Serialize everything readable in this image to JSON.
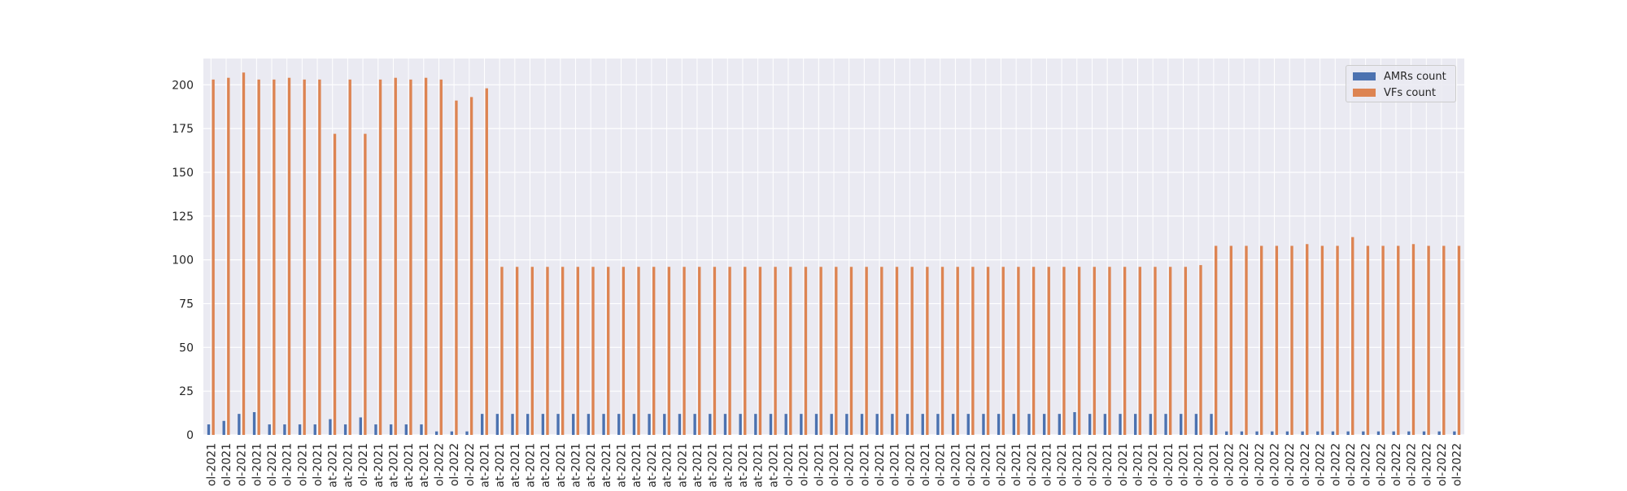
{
  "chart_data": {
    "type": "bar",
    "title": "",
    "xlabel": "",
    "ylabel": "",
    "ylim": [
      0,
      215
    ],
    "yticks": [
      0,
      25,
      50,
      75,
      100,
      125,
      150,
      175,
      200
    ],
    "grid": true,
    "legend_position": "top-right",
    "categories": [
      "ol-2021",
      "ol-2021",
      "ol-2021",
      "ol-2021",
      "ol-2021",
      "ol-2021",
      "ol-2021",
      "ol-2021",
      "at-2021",
      "at-2021",
      "ol-2021",
      "at-2021",
      "at-2021",
      "at-2021",
      "at-2021",
      "ol-2022",
      "ol-2022",
      "ol-2022",
      "at-2021",
      "at-2021",
      "at-2021",
      "at-2021",
      "at-2021",
      "at-2021",
      "at-2021",
      "at-2021",
      "at-2021",
      "at-2021",
      "at-2021",
      "at-2021",
      "at-2021",
      "at-2021",
      "at-2021",
      "at-2021",
      "at-2021",
      "at-2021",
      "at-2021",
      "at-2021",
      "ol-2021",
      "ol-2021",
      "ol-2021",
      "ol-2021",
      "ol-2021",
      "ol-2021",
      "ol-2021",
      "ol-2021",
      "ol-2021",
      "ol-2021",
      "ol-2021",
      "ol-2021",
      "ol-2021",
      "ol-2021",
      "ol-2021",
      "ol-2021",
      "ol-2021",
      "ol-2021",
      "ol-2021",
      "ol-2021",
      "ol-2021",
      "ol-2021",
      "ol-2021",
      "ol-2021",
      "ol-2021",
      "ol-2021",
      "ol-2021",
      "ol-2021",
      "ol-2021",
      "ol-2022",
      "ol-2022",
      "ol-2022",
      "ol-2022",
      "ol-2022",
      "ol-2022",
      "ol-2022",
      "ol-2022",
      "ol-2022",
      "ol-2022",
      "ol-2022",
      "ol-2022",
      "ol-2022",
      "ol-2022",
      "ol-2022",
      "ol-2022"
    ],
    "series": [
      {
        "name": "AMRs count",
        "color": "#4c72b0",
        "values": [
          6,
          8,
          12,
          13,
          6,
          6,
          6,
          6,
          9,
          6,
          10,
          6,
          6,
          6,
          6,
          2,
          2,
          2,
          12,
          12,
          12,
          12,
          12,
          12,
          12,
          12,
          12,
          12,
          12,
          12,
          12,
          12,
          12,
          12,
          12,
          12,
          12,
          12,
          12,
          12,
          12,
          12,
          12,
          12,
          12,
          12,
          12,
          12,
          12,
          12,
          12,
          12,
          12,
          12,
          12,
          12,
          12,
          13,
          12,
          12,
          12,
          12,
          12,
          12,
          12,
          12,
          12,
          2,
          2,
          2,
          2,
          2,
          2,
          2,
          2,
          2,
          2,
          2,
          2,
          2,
          2,
          2,
          2
        ]
      },
      {
        "name": "VFs count",
        "color": "#dd8452",
        "values": [
          203,
          204,
          207,
          203,
          203,
          204,
          203,
          203,
          172,
          203,
          172,
          203,
          204,
          203,
          204,
          203,
          191,
          193,
          198,
          96,
          96,
          96,
          96,
          96,
          96,
          96,
          96,
          96,
          96,
          96,
          96,
          96,
          96,
          96,
          96,
          96,
          96,
          96,
          96,
          96,
          96,
          96,
          96,
          96,
          96,
          96,
          96,
          96,
          96,
          96,
          96,
          96,
          96,
          96,
          96,
          96,
          96,
          96,
          96,
          96,
          96,
          96,
          96,
          96,
          96,
          97,
          108,
          108,
          108,
          108,
          108,
          108,
          109,
          108,
          108,
          113,
          108,
          108,
          108,
          109,
          108,
          108,
          108
        ]
      }
    ]
  }
}
